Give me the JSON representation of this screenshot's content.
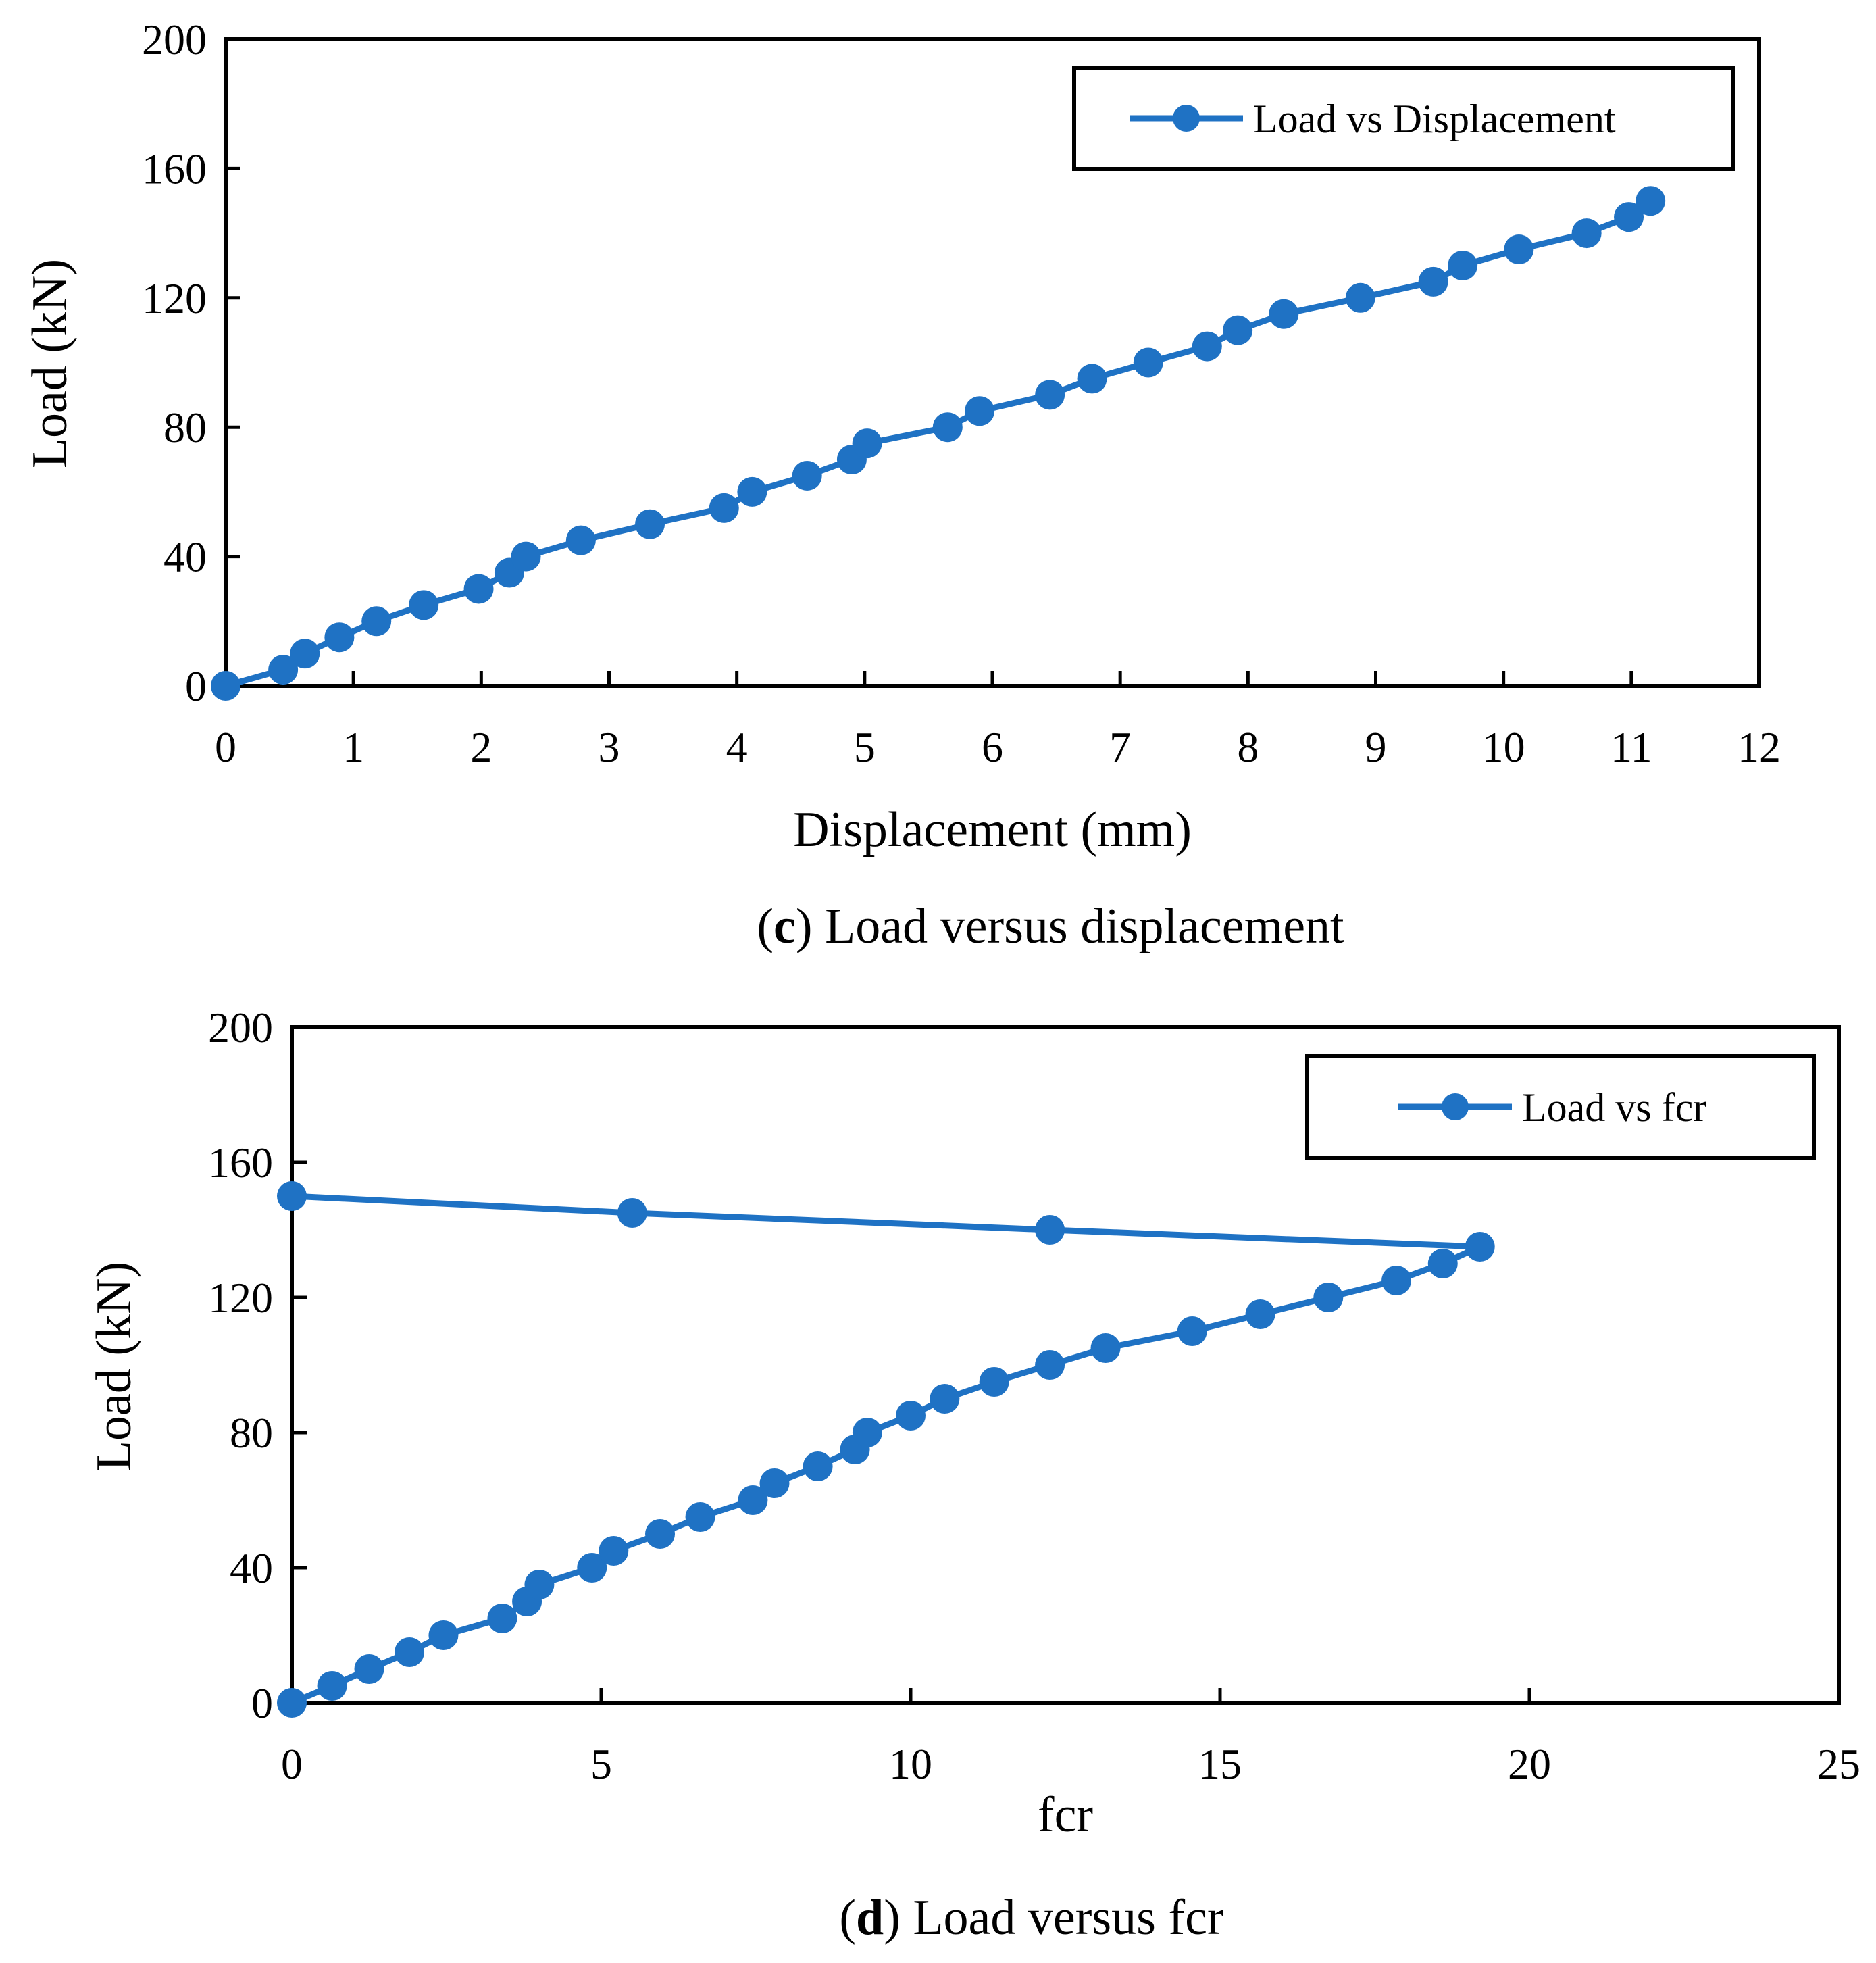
{
  "colors": {
    "series": "#1f72c4",
    "axis": "#000000",
    "background": "#ffffff"
  },
  "chart_data": [
    {
      "type": "line",
      "title": "",
      "caption": {
        "letter": "c",
        "text": "Load versus displacement"
      },
      "xlabel": "Displacement (mm)",
      "ylabel": "Load (kN)",
      "xlim": [
        0,
        12
      ],
      "ylim": [
        0,
        200
      ],
      "xticks": [
        0,
        1,
        2,
        3,
        4,
        5,
        6,
        7,
        8,
        9,
        10,
        11,
        12
      ],
      "yticks": [
        0,
        40,
        80,
        120,
        160,
        200
      ],
      "grid": false,
      "legend_position": "top-right",
      "series": [
        {
          "name": "Load vs Displacement",
          "marker": "circle",
          "x": [
            0,
            0.45,
            0.62,
            0.89,
            1.18,
            1.55,
            1.98,
            2.22,
            2.35,
            2.78,
            3.32,
            3.9,
            4.12,
            4.55,
            4.9,
            5.02,
            5.65,
            5.9,
            6.45,
            6.78,
            7.22,
            7.68,
            7.92,
            8.28,
            8.88,
            9.45,
            9.68,
            10.12,
            10.65,
            10.98,
            11.15
          ],
          "y": [
            0,
            5,
            10,
            15,
            20,
            25,
            30,
            35,
            40,
            45,
            50,
            55,
            60,
            65,
            70,
            75,
            80,
            85,
            90,
            95,
            100,
            105,
            110,
            115,
            120,
            125,
            130,
            135,
            140,
            145,
            150
          ]
        }
      ]
    },
    {
      "type": "line",
      "title": "",
      "caption": {
        "letter": "d",
        "text": "Load versus fcr"
      },
      "xlabel": "fcr",
      "ylabel": "Load (kN)",
      "xlim": [
        0,
        25
      ],
      "ylim": [
        0,
        200
      ],
      "xticks": [
        0,
        5,
        10,
        15,
        20,
        25
      ],
      "yticks": [
        0,
        40,
        80,
        120,
        160,
        200
      ],
      "grid": false,
      "legend_position": "top-right",
      "series": [
        {
          "name": "Load vs fcr",
          "marker": "circle",
          "x": [
            0,
            0.65,
            1.25,
            1.9,
            2.45,
            3.4,
            3.8,
            4.0,
            4.85,
            5.2,
            5.95,
            6.6,
            7.45,
            7.8,
            8.5,
            9.1,
            9.3,
            10.0,
            10.55,
            11.35,
            12.25,
            13.15,
            14.55,
            15.65,
            16.75,
            17.85,
            18.6,
            19.2,
            12.25,
            5.5,
            0
          ],
          "y": [
            0,
            5,
            10,
            15,
            20,
            25,
            30,
            35,
            40,
            45,
            50,
            55,
            60,
            65,
            70,
            75,
            80,
            85,
            90,
            95,
            100,
            105,
            110,
            115,
            120,
            125,
            130,
            135,
            140,
            145,
            150
          ]
        }
      ]
    }
  ]
}
